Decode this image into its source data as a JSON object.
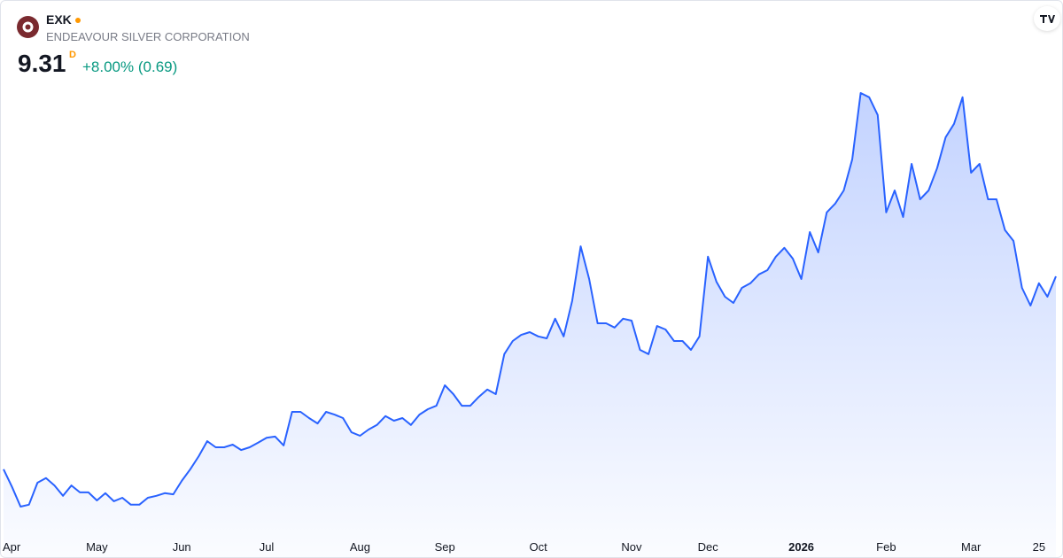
{
  "header": {
    "symbol": "EXK",
    "name": "ENDEAVOUR SILVER CORPORATION",
    "price": 9.31,
    "interval": "D",
    "change": "+8.00% (0.69)",
    "change_color": "#089981"
  },
  "chart_data": {
    "type": "area",
    "color": "#2962ff",
    "categories": [
      null,
      "Apr",
      null,
      null,
      null,
      null,
      null,
      null,
      null,
      null,
      null,
      "May",
      null,
      null,
      null,
      null,
      null,
      null,
      null,
      null,
      null,
      "Jun",
      null,
      null,
      null,
      null,
      null,
      null,
      null,
      null,
      null,
      "Jul",
      null,
      null,
      null,
      null,
      null,
      null,
      null,
      null,
      null,
      null,
      "Aug",
      null,
      null,
      null,
      null,
      null,
      null,
      null,
      null,
      null,
      "Sep",
      null,
      null,
      null,
      null,
      null,
      null,
      null,
      null,
      null,
      null,
      "Oct",
      null,
      null,
      null,
      null,
      null,
      null,
      null,
      null,
      null,
      null,
      "Nov",
      null,
      null,
      null,
      null,
      null,
      null,
      null,
      null,
      "Dec",
      null,
      null,
      null,
      null,
      null,
      null,
      null,
      null,
      null,
      null,
      "2026",
      null,
      null,
      null,
      null,
      null,
      null,
      null,
      null,
      null,
      "Feb",
      null,
      null,
      null,
      null,
      null,
      null,
      null,
      null,
      null,
      "Mar",
      null,
      null,
      null,
      null,
      null,
      null,
      null,
      "25",
      null,
      null
    ],
    "values": [
      4.3,
      3.84,
      3.33,
      3.38,
      3.95,
      4.07,
      3.88,
      3.61,
      3.88,
      3.7,
      3.7,
      3.49,
      3.68,
      3.47,
      3.56,
      3.38,
      3.38,
      3.56,
      3.61,
      3.68,
      3.65,
      4.0,
      4.3,
      4.64,
      5.03,
      4.87,
      4.87,
      4.94,
      4.8,
      4.87,
      4.99,
      5.12,
      5.15,
      4.92,
      5.79,
      5.79,
      5.63,
      5.49,
      5.79,
      5.72,
      5.63,
      5.26,
      5.17,
      5.33,
      5.45,
      5.68,
      5.56,
      5.63,
      5.45,
      5.72,
      5.86,
      5.95,
      6.48,
      6.25,
      5.95,
      5.95,
      6.18,
      6.37,
      6.25,
      7.29,
      7.63,
      7.79,
      7.86,
      7.75,
      7.7,
      8.21,
      7.75,
      8.67,
      10.09,
      9.24,
      8.09,
      8.09,
      7.98,
      8.21,
      8.16,
      7.4,
      7.29,
      8.02,
      7.93,
      7.63,
      7.63,
      7.4,
      7.75,
      9.82,
      9.17,
      8.78,
      8.62,
      9.01,
      9.13,
      9.36,
      9.47,
      9.82,
      10.05,
      9.77,
      9.24,
      10.46,
      9.93,
      10.97,
      11.2,
      11.54,
      12.35,
      14.07,
      13.96,
      13.5,
      10.97,
      11.54,
      10.85,
      12.23,
      11.31,
      11.54,
      12.12,
      12.92,
      13.27,
      13.96,
      12.0,
      12.23,
      11.31,
      11.31,
      10.51,
      10.23,
      9.01,
      8.55,
      9.13,
      8.78,
      9.31
    ]
  }
}
